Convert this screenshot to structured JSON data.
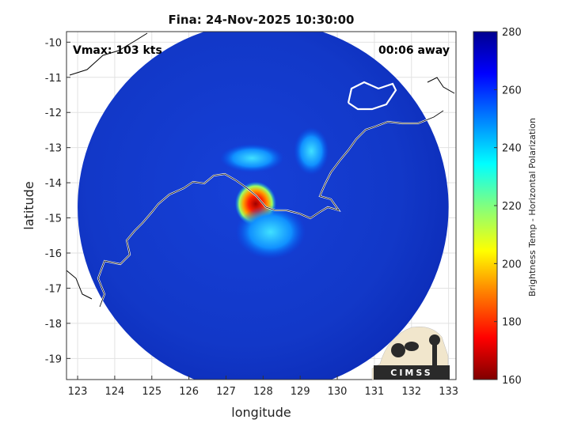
{
  "chart_data": {
    "type": "heatmap",
    "title": "Fina: 24-Nov-2025 10:30:00",
    "annotations": {
      "vmax": "Vmax: 103 kts",
      "time_away": "00:06 away"
    },
    "xlabel": "longitude",
    "ylabel": "latitude",
    "xlim": [
      122.7,
      133.2
    ],
    "ylim": [
      -19.6,
      -9.7
    ],
    "x_ticks": [
      123,
      124,
      125,
      126,
      127,
      128,
      129,
      130,
      131,
      132,
      133
    ],
    "y_ticks": [
      -10,
      -11,
      -12,
      -13,
      -14,
      -15,
      -16,
      -17,
      -18,
      -19
    ],
    "grid": true,
    "colorbar": {
      "label": "Brightness Temp - Horizontal Polarization",
      "min": 160,
      "max": 280,
      "ticks": [
        280,
        260,
        240,
        220,
        200,
        180,
        160
      ],
      "colormap": [
        "#800000",
        "#ff0000",
        "#ff8000",
        "#ffff00",
        "#80ff80",
        "#00ffff",
        "#0080ff",
        "#0000ff",
        "#00008f"
      ]
    },
    "swath": {
      "center_lon": 128.0,
      "center_lat": -14.7,
      "radius_deg": 5.0,
      "background_temp": 262
    },
    "features": [
      {
        "name": "storm core",
        "lon": 127.8,
        "lat": -14.6,
        "min_temp": 175
      },
      {
        "name": "inner rainband",
        "lon": 128.2,
        "lat": -15.4,
        "min_temp": 225
      },
      {
        "name": "outer rainband",
        "lon": 127.7,
        "lat": -13.3,
        "min_temp": 232
      },
      {
        "name": "eastern rainband",
        "lon": 129.3,
        "lat": -13.1,
        "min_temp": 235
      }
    ]
  },
  "logo": {
    "text": "CIMSS"
  }
}
